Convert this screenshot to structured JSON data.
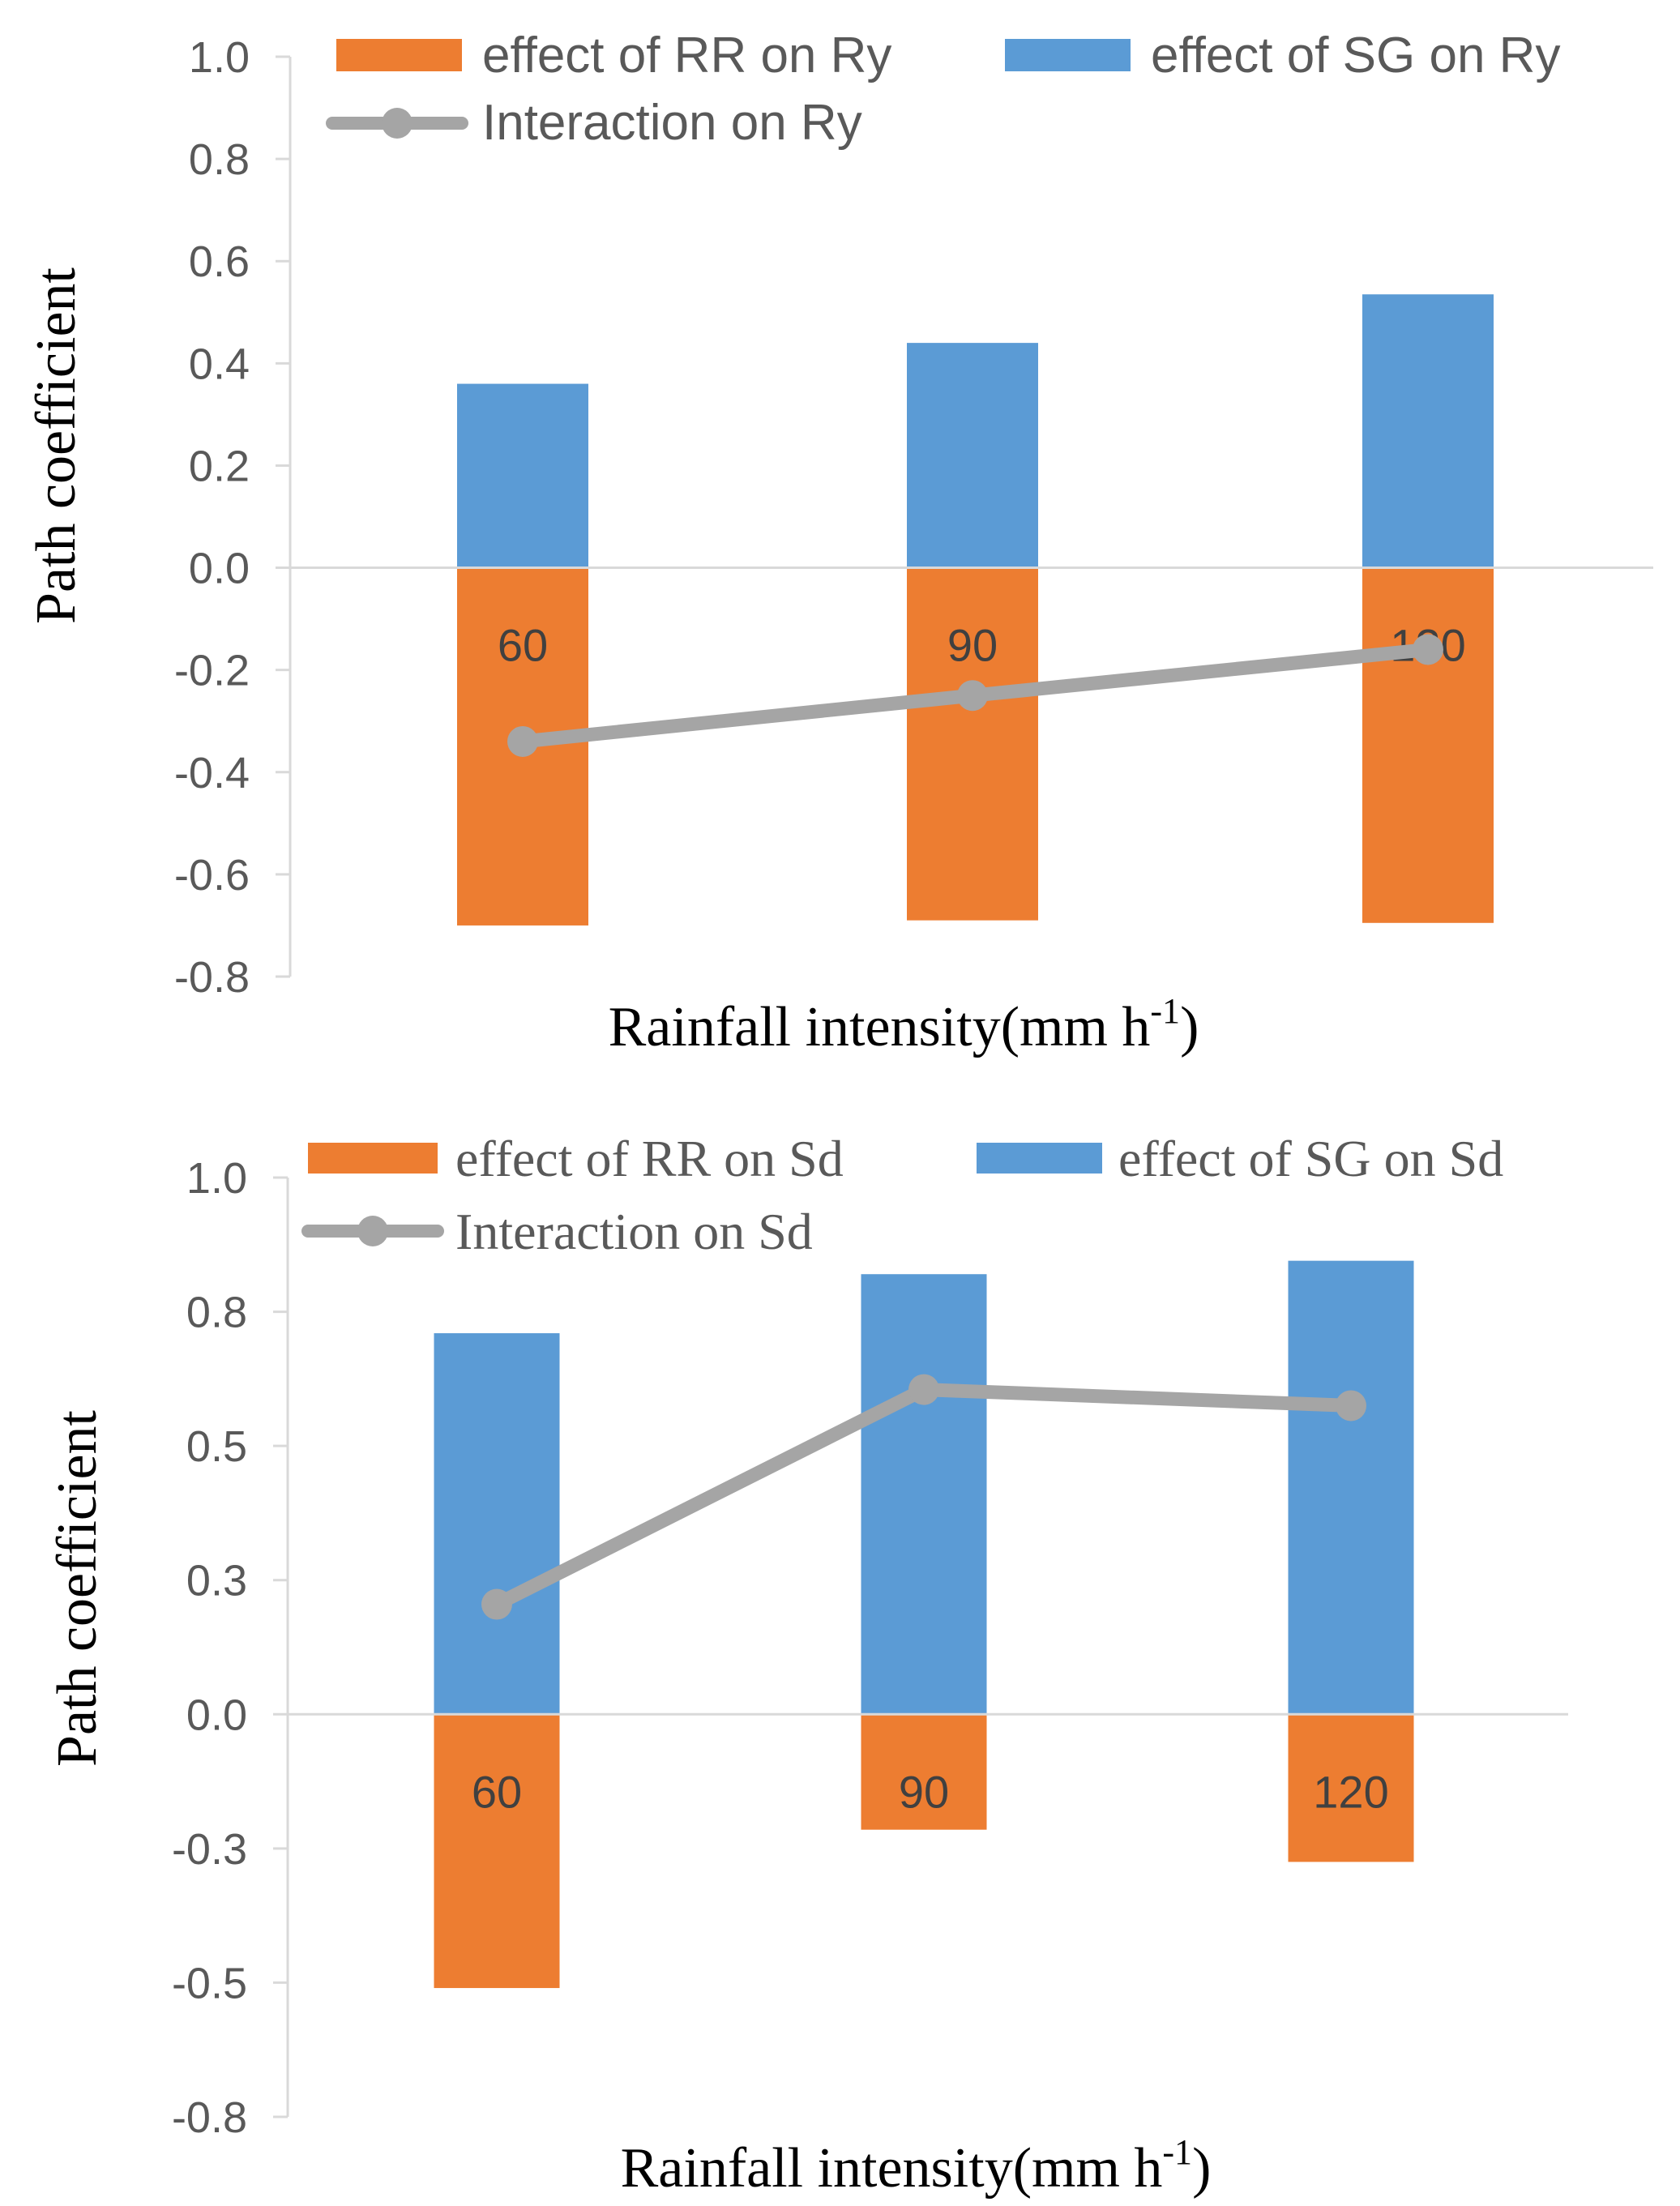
{
  "chart_data": [
    {
      "type": "bar",
      "categories": [
        "60",
        "90",
        "120"
      ],
      "series": [
        {
          "name": "effect of RR on Ry",
          "kind": "bar",
          "color": "#ED7D31",
          "values": [
            -0.7,
            -0.69,
            -0.695
          ]
        },
        {
          "name": "effect of SG on Ry",
          "kind": "bar",
          "color": "#5B9BD5",
          "values": [
            0.36,
            0.44,
            0.535
          ]
        },
        {
          "name": "Interaction on Ry",
          "kind": "line",
          "color": "#A5A5A5",
          "values": [
            -0.34,
            -0.25,
            -0.16
          ]
        }
      ],
      "xlabel": "Rainfall intensity(mm h",
      "xlabel_sup": "-1",
      "xlabel_close": ")",
      "ylabel": "Path coefficient",
      "ylim": [
        -0.8,
        1.0
      ],
      "yticks": [
        1.0,
        0.8,
        0.6,
        0.4,
        0.2,
        0.0,
        -0.2,
        -0.4,
        -0.6,
        -0.8
      ],
      "ytick_labels": [
        "1.0",
        "0.8",
        "0.6",
        "0.4",
        "0.2",
        "0.0",
        "-0.2",
        "-0.4",
        "-0.6",
        "-0.8"
      ],
      "legend_position": "top"
    },
    {
      "type": "bar",
      "categories": [
        "60",
        "90",
        "120"
      ],
      "series": [
        {
          "name": "effect of RR on Sd",
          "kind": "bar",
          "color": "#ED7D31",
          "values": [
            -0.51,
            -0.215,
            -0.275
          ]
        },
        {
          "name": "effect of SG on Sd",
          "kind": "bar",
          "color": "#5B9BD5",
          "values": [
            0.71,
            0.82,
            0.845
          ]
        },
        {
          "name": "Interaction on Sd",
          "kind": "line",
          "color": "#A5A5A5",
          "values": [
            0.205,
            0.605,
            0.575
          ]
        }
      ],
      "xlabel": "Rainfall intensity(mm h",
      "xlabel_sup": "-1",
      "xlabel_close": ")",
      "ylabel": "Path coefficient",
      "ylim": [
        -0.75,
        1.0
      ],
      "yticks": [
        1.0,
        0.75,
        0.5,
        0.25,
        0.0,
        -0.25,
        -0.5,
        -0.75
      ],
      "ytick_labels": [
        "1.0",
        "0.8",
        "0.5",
        "0.3",
        "0.0",
        "-0.3",
        "-0.5",
        "-0.8"
      ],
      "legend_position": "top"
    }
  ]
}
